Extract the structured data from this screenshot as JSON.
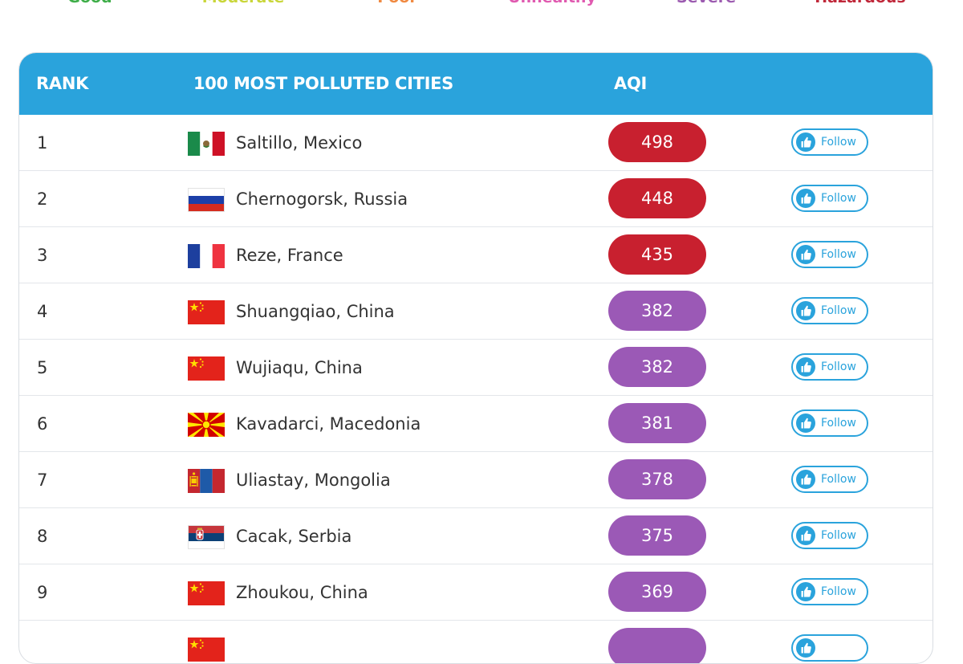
{
  "legend": [
    {
      "label": "Good",
      "color": "#3fae49"
    },
    {
      "label": "Moderate",
      "color": "#c9d63a"
    },
    {
      "label": "Poor",
      "color": "#f08a42"
    },
    {
      "label": "Unhealthy",
      "color": "#e05ab0"
    },
    {
      "label": "Severe",
      "color": "#9c5bb0"
    },
    {
      "label": "Hazardous",
      "color": "#c0283a"
    }
  ],
  "header": {
    "rank": "RANK",
    "cities": "100 MOST POLLUTED CITIES",
    "aqi": "AQI"
  },
  "colors": {
    "header_bg": "#2aa3dc",
    "hazardous": "#c8202f",
    "severe": "#9b59b6",
    "follow": "#2aa3dc"
  },
  "rows": [
    {
      "rank": "1",
      "city": "Saltillo, Mexico",
      "flag": "mexico",
      "aqi": "498",
      "level": "hazardous",
      "follow": "Follow"
    },
    {
      "rank": "2",
      "city": "Chernogorsk, Russia",
      "flag": "russia",
      "aqi": "448",
      "level": "hazardous",
      "follow": "Follow"
    },
    {
      "rank": "3",
      "city": "Reze, France",
      "flag": "france",
      "aqi": "435",
      "level": "hazardous",
      "follow": "Follow"
    },
    {
      "rank": "4",
      "city": "Shuangqiao, China",
      "flag": "china",
      "aqi": "382",
      "level": "severe",
      "follow": "Follow"
    },
    {
      "rank": "5",
      "city": "Wujiaqu, China",
      "flag": "china",
      "aqi": "382",
      "level": "severe",
      "follow": "Follow"
    },
    {
      "rank": "6",
      "city": "Kavadarci, Macedonia",
      "flag": "macedonia",
      "aqi": "381",
      "level": "severe",
      "follow": "Follow"
    },
    {
      "rank": "7",
      "city": "Uliastay, Mongolia",
      "flag": "mongolia",
      "aqi": "378",
      "level": "severe",
      "follow": "Follow"
    },
    {
      "rank": "8",
      "city": "Cacak, Serbia",
      "flag": "serbia",
      "aqi": "375",
      "level": "severe",
      "follow": "Follow"
    },
    {
      "rank": "9",
      "city": "Zhoukou, China",
      "flag": "china",
      "aqi": "369",
      "level": "severe",
      "follow": "Follow"
    },
    {
      "rank": "",
      "city": "",
      "flag": "china",
      "aqi": "",
      "level": "severe",
      "follow": ""
    }
  ]
}
